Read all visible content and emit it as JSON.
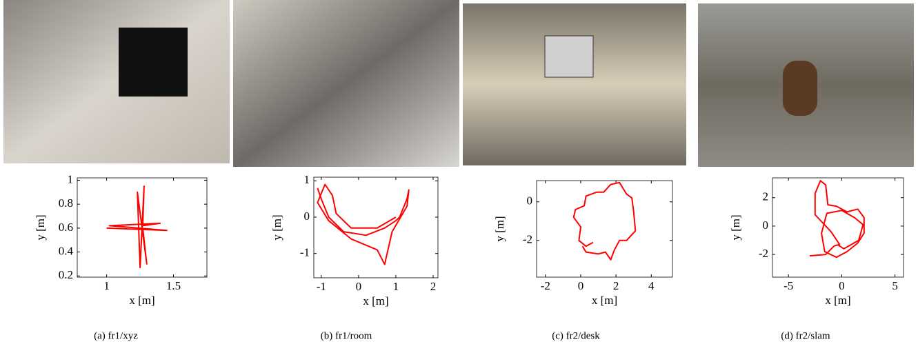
{
  "chart_data": [
    {
      "type": "line",
      "caption": "(a) fr1/xyz",
      "xlabel": "x [m]",
      "ylabel": "y [m]",
      "xlim": [
        0.78,
        1.75
      ],
      "ylim": [
        0.19,
        1.02
      ],
      "xticks": [
        1,
        1.5
      ],
      "yticks": [
        0.2,
        0.4,
        0.6,
        0.8,
        1
      ],
      "series": [
        {
          "color": "#ff0000",
          "x": [
            1.0,
            1.45,
            1.02,
            1.4,
            1.27,
            1.28,
            1.25,
            1.23,
            1.3,
            1.27
          ],
          "values": [
            0.6,
            0.58,
            0.62,
            0.64,
            0.62,
            0.95,
            0.27,
            0.9,
            0.3,
            0.6
          ]
        }
      ]
    },
    {
      "type": "line",
      "caption": "(b) fr1/room",
      "xlabel": "x [m]",
      "ylabel": "y [m]",
      "xlim": [
        -1.2,
        2.13
      ],
      "ylim": [
        -1.67,
        1.1
      ],
      "xticks": [
        -1,
        0,
        1,
        2
      ],
      "yticks": [
        -1,
        0,
        1
      ],
      "series": [
        {
          "color": "#ff0000",
          "x": [
            -1.1,
            -1.0,
            -0.8,
            -0.4,
            0.2,
            0.7,
            1.0,
            1.1,
            1.3,
            1.35,
            1.3,
            0.9,
            0.7,
            0.5,
            -0.2,
            -0.8,
            -1.1,
            -0.9,
            -0.7,
            -0.6,
            -0.2,
            0.5,
            1.0
          ],
          "values": [
            0.8,
            0.5,
            0.0,
            -0.4,
            -0.5,
            -0.3,
            -0.1,
            0.0,
            0.5,
            0.75,
            0.3,
            -0.4,
            -1.3,
            -0.9,
            -0.6,
            -0.1,
            0.4,
            0.9,
            0.6,
            0.1,
            -0.3,
            -0.3,
            0.0
          ]
        }
      ]
    },
    {
      "type": "line",
      "caption": "(c) fr2/desk",
      "xlabel": "x [m]",
      "ylabel": "y [m]",
      "xlim": [
        -2.5,
        5.2
      ],
      "ylim": [
        -3.9,
        1.1
      ],
      "xticks": [
        -2,
        0,
        2,
        4
      ],
      "yticks": [
        -2,
        0
      ],
      "series": [
        {
          "color": "#ff0000",
          "x": [
            0.7,
            0.3,
            -0.1,
            0,
            -0.4,
            -0.3,
            0.2,
            0.3,
            0.9,
            1.3,
            1.7,
            2.2,
            2.6,
            2.9,
            3.0,
            3.1,
            2.6,
            2.2,
            1.9,
            1.7,
            1.4,
            1.0,
            0.3,
            0.1
          ],
          "values": [
            -2.1,
            -2.3,
            -2.0,
            -1.3,
            -0.8,
            -0.4,
            -0.2,
            0.3,
            0.5,
            0.5,
            0.9,
            1.0,
            0.4,
            0.2,
            -0.5,
            -1.5,
            -2.0,
            -2.0,
            -2.5,
            -3.0,
            -2.6,
            -2.7,
            -2.6,
            -2.3
          ]
        }
      ]
    },
    {
      "type": "line",
      "caption": "(d) fr2/slam",
      "xlabel": "x [m]",
      "ylabel": "y [m]",
      "xlim": [
        -6.5,
        5.8
      ],
      "ylim": [
        -3.6,
        3.4
      ],
      "xticks": [
        -5,
        0,
        5
      ],
      "yticks": [
        -2,
        0,
        2
      ],
      "series": [
        {
          "color": "#ff0000",
          "x": [
            -3,
            -1.5,
            -0.7,
            -0.2,
            -1.0,
            -2.5,
            -2.5,
            -2.0,
            -1.5,
            -1.3,
            -0.5,
            0.5,
            1.5,
            2.1,
            2.1,
            1.5,
            0.5,
            -0.5,
            -1.6,
            -1.9,
            -1.4,
            0,
            1.2,
            2,
            1.6,
            0.2,
            -0.4
          ],
          "values": [
            -2.1,
            -2.0,
            -1.4,
            -1.3,
            -0.4,
            0.8,
            2.3,
            3.2,
            2.9,
            1.5,
            1.4,
            1.0,
            1.2,
            0.6,
            -0.5,
            -1.2,
            -1.8,
            -2.2,
            -1.8,
            -0.5,
            0.9,
            1.1,
            0.6,
            0.1,
            -1.0,
            -1.6,
            -1.3
          ]
        }
      ]
    }
  ]
}
